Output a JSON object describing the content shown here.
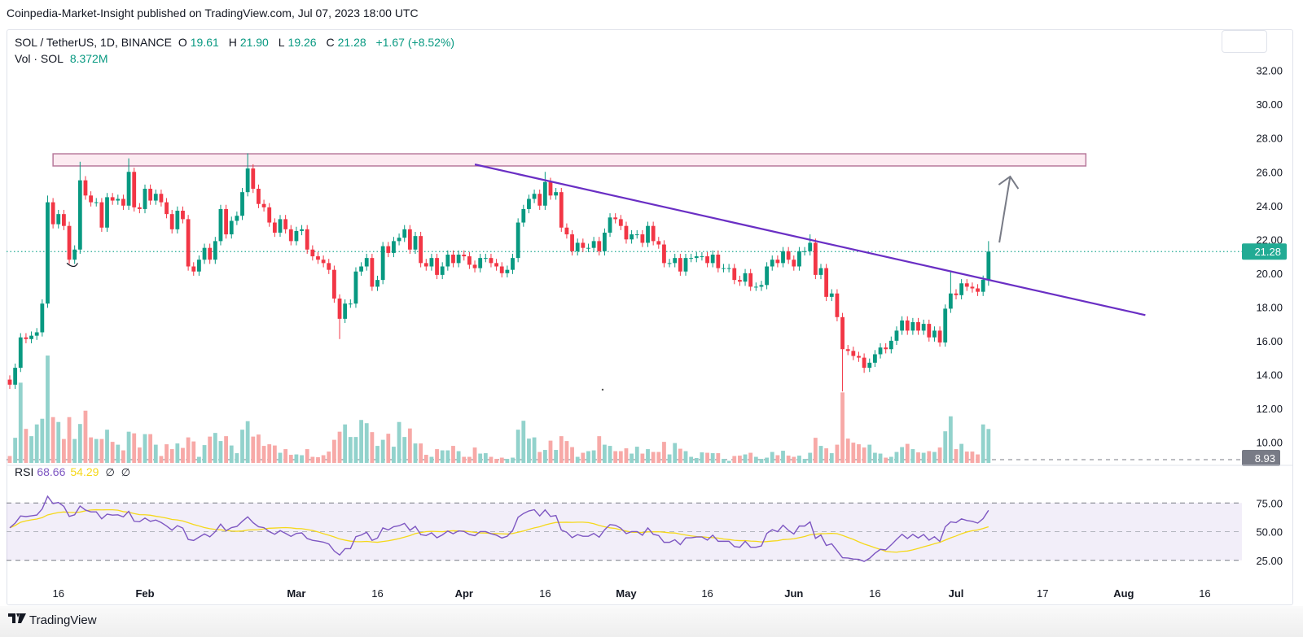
{
  "header": {
    "published": "Coinpedia-Market-Insight published on TradingView.com, Jul 07, 2023 18:00 UTC"
  },
  "legend": {
    "symbol": "SOL / TetherUS, 1D, BINANCE",
    "o_label": "O",
    "o_value": "19.61",
    "h_label": "H",
    "h_value": "21.90",
    "l_label": "L",
    "l_value": "19.26",
    "c_label": "C",
    "c_value": "21.28",
    "change": "+1.67 (+8.52%)",
    "vol_label": "Vol · SOL",
    "vol_value": "8.372M"
  },
  "rsi_legend": {
    "label": "RSI",
    "rsi_value": "68.66",
    "ma_value": "54.29",
    "na1": "∅",
    "na2": "∅"
  },
  "footer": {
    "brand": "TradingView",
    "brand_icon": "tradingview-logo-icon"
  },
  "colors": {
    "up": "#089981",
    "down": "#f23645",
    "vol_up": "#92d2cc",
    "vol_down": "#f7a9a7",
    "trendline": "#6a2fc4",
    "zone_fill": "#fcebf1",
    "zone_border": "#b87a9c",
    "arrow": "#787b86",
    "rsi": "#7e57c2",
    "rsi_ma": "#f5d81a",
    "last_price": "#22ab94",
    "ref_line": "#787b86"
  },
  "chart_data": {
    "type": "candlestick",
    "interval": "1D",
    "x_end": "2023-07-07",
    "price_axis": {
      "ticks": [
        "32.00",
        "30.00",
        "28.00",
        "26.00",
        "24.00",
        "22.00",
        "20.00",
        "18.00",
        "16.00",
        "14.00",
        "12.00",
        "10.00"
      ],
      "range": [
        9,
        33
      ]
    },
    "last_price_label": "21.28",
    "last_price": 21.28,
    "ref_line": {
      "label": "8.93",
      "value": 8.93
    },
    "x_ticks": [
      {
        "label": "16",
        "date": "2023-01-16",
        "month": false
      },
      {
        "label": "Feb",
        "date": "2023-02-01",
        "month": true
      },
      {
        "label": "Mar",
        "date": "2023-03-01",
        "month": true
      },
      {
        "label": "16",
        "date": "2023-03-16",
        "month": false
      },
      {
        "label": "Apr",
        "date": "2023-04-01",
        "month": true
      },
      {
        "label": "16",
        "date": "2023-04-16",
        "month": false
      },
      {
        "label": "May",
        "date": "2023-05-01",
        "month": true
      },
      {
        "label": "16",
        "date": "2023-05-16",
        "month": false
      },
      {
        "label": "Jun",
        "date": "2023-06-01",
        "month": true
      },
      {
        "label": "16",
        "date": "2023-06-16",
        "month": false
      },
      {
        "label": "Jul",
        "date": "2023-07-01",
        "month": true
      },
      {
        "label": "17",
        "date": "2023-07-17",
        "month": false
      },
      {
        "label": "Aug",
        "date": "2023-08-01",
        "month": true
      },
      {
        "label": "16",
        "date": "2023-08-16",
        "month": false
      }
    ],
    "closes": [
      13.4,
      14.4,
      16.2,
      16.1,
      16.3,
      16.5,
      18.2,
      24.2,
      22.9,
      23.5,
      22.8,
      20.8,
      21.4,
      25.5,
      24.6,
      24.2,
      24.2,
      22.7,
      24.5,
      24.3,
      24.4,
      24.0,
      26.0,
      23.9,
      23.8,
      25.0,
      24.3,
      24.7,
      24.2,
      23.5,
      22.6,
      23.7,
      23.2,
      20.4,
      20.1,
      20.8,
      21.5,
      20.8,
      21.9,
      23.8,
      22.3,
      23.1,
      23.4,
      24.8,
      26.2,
      25.0,
      24.1,
      23.9,
      23.0,
      22.4,
      23.2,
      22.6,
      21.9,
      22.5,
      22.6,
      21.4,
      21.0,
      20.8,
      20.6,
      20.2,
      18.5,
      17.3,
      18.2,
      18.2,
      20.1,
      20.4,
      20.9,
      19.2,
      19.6,
      21.6,
      21.2,
      21.9,
      22.1,
      22.6,
      21.4,
      22.2,
      20.6,
      20.4,
      20.9,
      19.9,
      20.4,
      21.1,
      20.6,
      21.1,
      21.0,
      20.5,
      20.3,
      20.9,
      20.9,
      20.6,
      20.4,
      20.0,
      20.2,
      20.9,
      23.0,
      23.8,
      24.4,
      24.7,
      24.0,
      25.4,
      24.6,
      24.8,
      22.7,
      22.3,
      21.3,
      21.8,
      21.5,
      21.5,
      21.9,
      21.3,
      22.4,
      23.3,
      23.2,
      22.8,
      22.0,
      22.3,
      22.3,
      21.8,
      22.8,
      21.9,
      21.7,
      20.6,
      20.6,
      20.9,
      20.1,
      20.9,
      20.9,
      21.0,
      21.0,
      20.6,
      21.1,
      20.3,
      20.3,
      20.3,
      19.6,
      19.5,
      20.0,
      19.2,
      19.2,
      19.3,
      20.4,
      20.8,
      20.6,
      21.3,
      20.8,
      20.4,
      21.3,
      21.3,
      21.8,
      19.9,
      20.3,
      18.6,
      18.8,
      17.4,
      15.5,
      15.4,
      15.1,
      15.0,
      14.4,
      14.7,
      15.2,
      15.6,
      15.5,
      16.0,
      16.6,
      17.2,
      16.6,
      17.1,
      16.6,
      17.0,
      16.2,
      16.6,
      15.9,
      17.9,
      18.8,
      18.7,
      19.4,
      19.2,
      19.1,
      18.9,
      19.61,
      21.28
    ],
    "wick_overrides": [
      {
        "i": 7,
        "h": 24.6
      },
      {
        "i": 13,
        "h": 26.6
      },
      {
        "i": 22,
        "h": 26.8
      },
      {
        "i": 44,
        "h": 27.1
      },
      {
        "i": 61,
        "l": 16.1
      },
      {
        "i": 99,
        "h": 26.0
      },
      {
        "i": 148,
        "h": 22.3
      },
      {
        "i": 154,
        "l": 13.0
      },
      {
        "i": 158,
        "l": 14.1
      },
      {
        "i": 174,
        "h": 20.1
      },
      {
        "i": 181,
        "h": 21.9,
        "l": 19.26
      }
    ],
    "volume_millions": [
      1.7,
      6.2,
      19.8,
      8.4,
      6.6,
      9.5,
      10.9,
      26.5,
      11.3,
      10.1,
      5.9,
      11.3,
      5.9,
      9.6,
      12.9,
      6.3,
      5.9,
      5.9,
      8.2,
      5.2,
      4.5,
      3.1,
      7.7,
      7.3,
      3.8,
      7.1,
      7.1,
      4.5,
      1.7,
      4.6,
      3.4,
      4.8,
      3.7,
      6.3,
      5.3,
      1.5,
      4.4,
      6.5,
      7.4,
      5.4,
      6.6,
      4.3,
      2.4,
      8.2,
      10.3,
      6.5,
      7.0,
      4.2,
      4.6,
      4.3,
      2.5,
      3.4,
      2.0,
      2.1,
      1.9,
      3.4,
      1.5,
      1.4,
      1.9,
      2.8,
      5.7,
      7.7,
      9.5,
      6.4,
      6.4,
      10.6,
      9.8,
      7.6,
      4.2,
      5.7,
      7.2,
      4.0,
      10.1,
      6.4,
      8.5,
      4.8,
      4.8,
      2.0,
      1.5,
      3.4,
      3.1,
      3.1,
      4.2,
      2.9,
      1.5,
      1.5,
      3.8,
      2.3,
      2.4,
      1.5,
      1.0,
      1.3,
      1.0,
      1.3,
      8.2,
      10.4,
      6.0,
      6.3,
      2.7,
      3.2,
      5.5,
      3.2,
      6.6,
      5.4,
      3.9,
      1.5,
      2.5,
      2.9,
      3.1,
      6.6,
      4.5,
      4.2,
      2.9,
      2.9,
      3.6,
      2.3,
      4.0,
      2.3,
      3.4,
      2.7,
      2.7,
      5.2,
      2.1,
      4.9,
      3.5,
      2.9,
      1.5,
      1.2,
      2.6,
      2.5,
      2.4,
      2.4,
      1.0,
      0.5,
      1.7,
      1.8,
      2.1,
      2.5,
      1.5,
      1.0,
      1.3,
      2.7,
      1.9,
      3.0,
      1.8,
      1.5,
      1.8,
      1.0,
      2.5,
      6.2,
      4.2,
      3.6,
      2.4,
      4.5,
      17.4,
      6.0,
      5.0,
      4.6,
      3.8,
      4.5,
      2.5,
      2.3,
      1.3,
      1.5,
      2.7,
      3.9,
      4.7,
      3.4,
      2.6,
      2.5,
      2.9,
      2.7,
      3.8,
      7.8,
      11.5,
      3.4,
      4.7,
      2.8,
      2.8,
      2.1,
      9.5,
      8.372
    ],
    "resistance_zone": {
      "from": "2023-01-15",
      "to": "2023-07-25",
      "low": 26.35,
      "high": 27.07
    },
    "trendline": {
      "start": {
        "date": "2023-04-03",
        "price": 26.44
      },
      "end": {
        "date": "2023-08-05",
        "price": 17.52
      }
    },
    "arrow": {
      "start": {
        "date": "2023-07-09",
        "price": 21.82
      },
      "end": {
        "date": "2023-07-11",
        "price": 25.72
      }
    },
    "rsi": {
      "period": 14,
      "ma_period": 14,
      "levels": [
        75,
        50,
        25
      ],
      "tick_labels": [
        "75.00",
        "50.00",
        "25.00"
      ]
    }
  }
}
